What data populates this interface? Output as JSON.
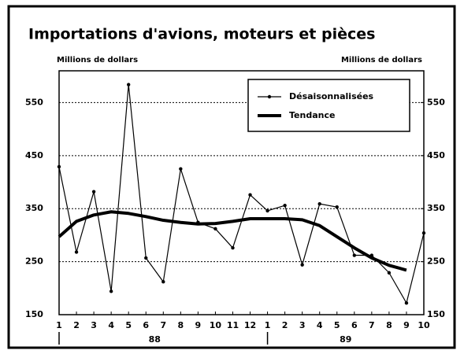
{
  "chart_data": {
    "type": "line",
    "title": "Importations d'avions, moteurs et pièces",
    "y_label": "Millions de dollars",
    "y2_label": "Millions de dollars",
    "categories": [
      "1",
      "2",
      "3",
      "4",
      "5",
      "6",
      "7",
      "8",
      "9",
      "10",
      "11",
      "12",
      "1",
      "2",
      "3",
      "4",
      "5",
      "6",
      "7",
      "8",
      "9",
      "10"
    ],
    "x_group_labels": [
      "88",
      "89"
    ],
    "series": [
      {
        "name": "Désaisonnalisées",
        "color": "#000000",
        "marker": true,
        "values": [
          429,
          268,
          382,
          194,
          584,
          257,
          212,
          425,
          324,
          312,
          276,
          376,
          346,
          356,
          244,
          359,
          353,
          262,
          262,
          229,
          172,
          304
        ]
      },
      {
        "name": "Tendance",
        "color": "#000000",
        "marker": false,
        "values": [
          297,
          326,
          338,
          344,
          341,
          335,
          328,
          324,
          321,
          322,
          326,
          331,
          331,
          331,
          329,
          318,
          297,
          276,
          257,
          243,
          234,
          null
        ]
      }
    ],
    "ylim": [
      150,
      610
    ],
    "yticks": [
      150,
      250,
      350,
      450,
      550
    ],
    "y2lim": [
      150,
      610
    ],
    "y2ticks": [
      150,
      250,
      350,
      450,
      550
    ],
    "grid": true,
    "legend": "upper right"
  }
}
